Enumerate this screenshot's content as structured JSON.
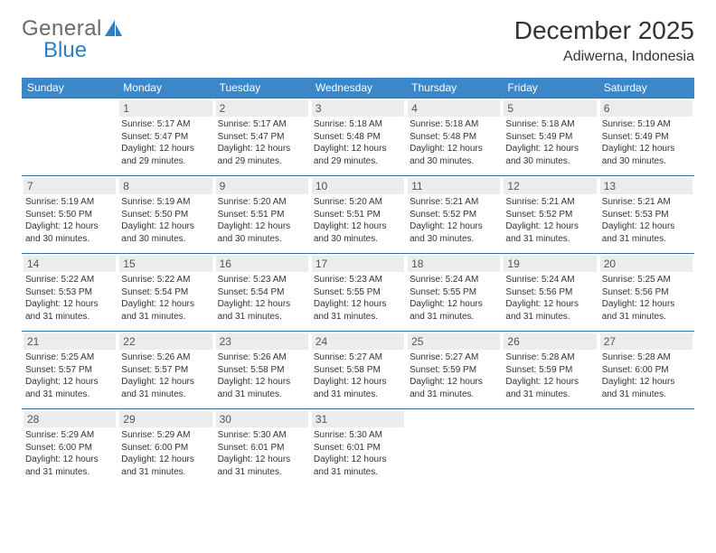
{
  "logo": {
    "text_gray": "General",
    "text_blue": "Blue",
    "sail_color": "#2f7ec0"
  },
  "title": "December 2025",
  "location": "Adiwerna, Indonesia",
  "colors": {
    "header_bg": "#3b87c8",
    "row_border": "#2f6fa5",
    "daynum_bg": "#ececec",
    "text": "#333333"
  },
  "daysOfWeek": [
    "Sunday",
    "Monday",
    "Tuesday",
    "Wednesday",
    "Thursday",
    "Friday",
    "Saturday"
  ],
  "firstDayOffset": 1,
  "daysInMonth": 31,
  "days": {
    "1": {
      "sunrise": "5:17 AM",
      "sunset": "5:47 PM",
      "daylight": "12 hours and 29 minutes."
    },
    "2": {
      "sunrise": "5:17 AM",
      "sunset": "5:47 PM",
      "daylight": "12 hours and 29 minutes."
    },
    "3": {
      "sunrise": "5:18 AM",
      "sunset": "5:48 PM",
      "daylight": "12 hours and 29 minutes."
    },
    "4": {
      "sunrise": "5:18 AM",
      "sunset": "5:48 PM",
      "daylight": "12 hours and 30 minutes."
    },
    "5": {
      "sunrise": "5:18 AM",
      "sunset": "5:49 PM",
      "daylight": "12 hours and 30 minutes."
    },
    "6": {
      "sunrise": "5:19 AM",
      "sunset": "5:49 PM",
      "daylight": "12 hours and 30 minutes."
    },
    "7": {
      "sunrise": "5:19 AM",
      "sunset": "5:50 PM",
      "daylight": "12 hours and 30 minutes."
    },
    "8": {
      "sunrise": "5:19 AM",
      "sunset": "5:50 PM",
      "daylight": "12 hours and 30 minutes."
    },
    "9": {
      "sunrise": "5:20 AM",
      "sunset": "5:51 PM",
      "daylight": "12 hours and 30 minutes."
    },
    "10": {
      "sunrise": "5:20 AM",
      "sunset": "5:51 PM",
      "daylight": "12 hours and 30 minutes."
    },
    "11": {
      "sunrise": "5:21 AM",
      "sunset": "5:52 PM",
      "daylight": "12 hours and 30 minutes."
    },
    "12": {
      "sunrise": "5:21 AM",
      "sunset": "5:52 PM",
      "daylight": "12 hours and 31 minutes."
    },
    "13": {
      "sunrise": "5:21 AM",
      "sunset": "5:53 PM",
      "daylight": "12 hours and 31 minutes."
    },
    "14": {
      "sunrise": "5:22 AM",
      "sunset": "5:53 PM",
      "daylight": "12 hours and 31 minutes."
    },
    "15": {
      "sunrise": "5:22 AM",
      "sunset": "5:54 PM",
      "daylight": "12 hours and 31 minutes."
    },
    "16": {
      "sunrise": "5:23 AM",
      "sunset": "5:54 PM",
      "daylight": "12 hours and 31 minutes."
    },
    "17": {
      "sunrise": "5:23 AM",
      "sunset": "5:55 PM",
      "daylight": "12 hours and 31 minutes."
    },
    "18": {
      "sunrise": "5:24 AM",
      "sunset": "5:55 PM",
      "daylight": "12 hours and 31 minutes."
    },
    "19": {
      "sunrise": "5:24 AM",
      "sunset": "5:56 PM",
      "daylight": "12 hours and 31 minutes."
    },
    "20": {
      "sunrise": "5:25 AM",
      "sunset": "5:56 PM",
      "daylight": "12 hours and 31 minutes."
    },
    "21": {
      "sunrise": "5:25 AM",
      "sunset": "5:57 PM",
      "daylight": "12 hours and 31 minutes."
    },
    "22": {
      "sunrise": "5:26 AM",
      "sunset": "5:57 PM",
      "daylight": "12 hours and 31 minutes."
    },
    "23": {
      "sunrise": "5:26 AM",
      "sunset": "5:58 PM",
      "daylight": "12 hours and 31 minutes."
    },
    "24": {
      "sunrise": "5:27 AM",
      "sunset": "5:58 PM",
      "daylight": "12 hours and 31 minutes."
    },
    "25": {
      "sunrise": "5:27 AM",
      "sunset": "5:59 PM",
      "daylight": "12 hours and 31 minutes."
    },
    "26": {
      "sunrise": "5:28 AM",
      "sunset": "5:59 PM",
      "daylight": "12 hours and 31 minutes."
    },
    "27": {
      "sunrise": "5:28 AM",
      "sunset": "6:00 PM",
      "daylight": "12 hours and 31 minutes."
    },
    "28": {
      "sunrise": "5:29 AM",
      "sunset": "6:00 PM",
      "daylight": "12 hours and 31 minutes."
    },
    "29": {
      "sunrise": "5:29 AM",
      "sunset": "6:00 PM",
      "daylight": "12 hours and 31 minutes."
    },
    "30": {
      "sunrise": "5:30 AM",
      "sunset": "6:01 PM",
      "daylight": "12 hours and 31 minutes."
    },
    "31": {
      "sunrise": "5:30 AM",
      "sunset": "6:01 PM",
      "daylight": "12 hours and 31 minutes."
    }
  },
  "labels": {
    "sunrise": "Sunrise:",
    "sunset": "Sunset:",
    "daylight": "Daylight:"
  }
}
